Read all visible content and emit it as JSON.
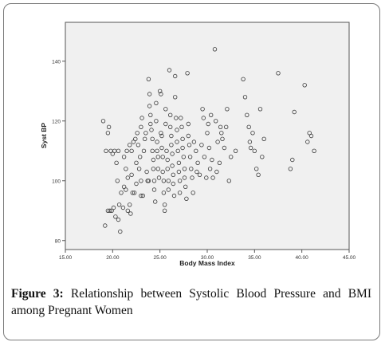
{
  "caption": {
    "label": "Figure 3:",
    "text": "Relationship between Systolic Blood Pressure and BMI among Pregnant Women"
  },
  "colors": {
    "plot_bg": "#f0f0f0",
    "marker": "#3a3a3a",
    "axis": "#555555",
    "frame": "#7a7a7a"
  },
  "chart_data": {
    "type": "scatter",
    "xlabel": "Body Mass Index",
    "ylabel": "Syst BP",
    "xlim": [
      15.0,
      45.0
    ],
    "ylim": [
      77,
      153
    ],
    "xticks": [
      15,
      20,
      25,
      30,
      35,
      40,
      45
    ],
    "xtick_labels": [
      "15.00",
      "20.00",
      "25.00",
      "30.00",
      "35.00",
      "40.00",
      "45.00"
    ],
    "yticks": [
      80,
      100,
      120,
      140
    ],
    "ytick_labels": [
      "80",
      "100",
      "120",
      "140"
    ],
    "grid": false,
    "legend": false,
    "points": [
      [
        19.0,
        120
      ],
      [
        19.3,
        110
      ],
      [
        19.5,
        116
      ],
      [
        19.6,
        118
      ],
      [
        19.8,
        110
      ],
      [
        20.0,
        109
      ],
      [
        20.2,
        110
      ],
      [
        20.4,
        106
      ],
      [
        20.6,
        110
      ],
      [
        19.2,
        85
      ],
      [
        19.5,
        90
      ],
      [
        19.7,
        90
      ],
      [
        19.9,
        90
      ],
      [
        20.1,
        91
      ],
      [
        20.3,
        88
      ],
      [
        20.6,
        87
      ],
      [
        20.8,
        83
      ],
      [
        20.7,
        92
      ],
      [
        21.1,
        91
      ],
      [
        20.5,
        100
      ],
      [
        20.9,
        96
      ],
      [
        21.2,
        98
      ],
      [
        21.4,
        97
      ],
      [
        21.6,
        90
      ],
      [
        21.8,
        92
      ],
      [
        21.9,
        89
      ],
      [
        21.4,
        104
      ],
      [
        21.5,
        110
      ],
      [
        21.8,
        112
      ],
      [
        21.2,
        108
      ],
      [
        21.6,
        101
      ],
      [
        22.0,
        102
      ],
      [
        22.1,
        96
      ],
      [
        22.3,
        96
      ],
      [
        22.5,
        99
      ],
      [
        22.0,
        110
      ],
      [
        22.2,
        113
      ],
      [
        22.4,
        114
      ],
      [
        22.6,
        116
      ],
      [
        22.7,
        112
      ],
      [
        22.5,
        106
      ],
      [
        22.8,
        104
      ],
      [
        22.9,
        108
      ],
      [
        23.0,
        100
      ],
      [
        23.0,
        95
      ],
      [
        23.2,
        95
      ],
      [
        23.0,
        118
      ],
      [
        23.1,
        121
      ],
      [
        23.3,
        110
      ],
      [
        23.4,
        114
      ],
      [
        23.5,
        116
      ],
      [
        23.6,
        103
      ],
      [
        23.7,
        100
      ],
      [
        23.8,
        100
      ],
      [
        23.8,
        134
      ],
      [
        23.9,
        129
      ],
      [
        23.9,
        125
      ],
      [
        24.0,
        122
      ],
      [
        24.0,
        119
      ],
      [
        24.1,
        117
      ],
      [
        24.2,
        114
      ],
      [
        24.2,
        110
      ],
      [
        24.3,
        107
      ],
      [
        24.3,
        104
      ],
      [
        24.4,
        100
      ],
      [
        24.4,
        97
      ],
      [
        24.5,
        93
      ],
      [
        24.6,
        120
      ],
      [
        24.6,
        126
      ],
      [
        24.7,
        110
      ],
      [
        24.7,
        113
      ],
      [
        24.8,
        108
      ],
      [
        24.8,
        104
      ],
      [
        24.9,
        101
      ],
      [
        25.0,
        130
      ],
      [
        25.1,
        129
      ],
      [
        25.1,
        116
      ],
      [
        25.2,
        115
      ],
      [
        25.2,
        111
      ],
      [
        25.3,
        108
      ],
      [
        25.3,
        103
      ],
      [
        25.4,
        100
      ],
      [
        25.4,
        96
      ],
      [
        25.5,
        92
      ],
      [
        25.5,
        90
      ],
      [
        25.6,
        119
      ],
      [
        25.6,
        124
      ],
      [
        25.7,
        110
      ],
      [
        25.8,
        107
      ],
      [
        25.8,
        104
      ],
      [
        25.9,
        100
      ],
      [
        25.9,
        97
      ],
      [
        26.0,
        137
      ],
      [
        26.1,
        122
      ],
      [
        26.1,
        118
      ],
      [
        26.2,
        115
      ],
      [
        26.2,
        112
      ],
      [
        26.3,
        109
      ],
      [
        26.3,
        105
      ],
      [
        26.4,
        102
      ],
      [
        26.4,
        99
      ],
      [
        26.5,
        95
      ],
      [
        26.6,
        135
      ],
      [
        26.6,
        128
      ],
      [
        26.7,
        121
      ],
      [
        26.8,
        117
      ],
      [
        26.8,
        113
      ],
      [
        26.9,
        110
      ],
      [
        27.0,
        106
      ],
      [
        27.0,
        103
      ],
      [
        27.1,
        100
      ],
      [
        27.1,
        96
      ],
      [
        27.2,
        121
      ],
      [
        27.3,
        118
      ],
      [
        27.4,
        114
      ],
      [
        27.4,
        111
      ],
      [
        27.5,
        108
      ],
      [
        27.6,
        104
      ],
      [
        27.6,
        101
      ],
      [
        27.7,
        98
      ],
      [
        27.8,
        94
      ],
      [
        27.9,
        136
      ],
      [
        28.0,
        119
      ],
      [
        28.0,
        115
      ],
      [
        28.1,
        112
      ],
      [
        28.2,
        108
      ],
      [
        28.3,
        104
      ],
      [
        28.4,
        101
      ],
      [
        28.5,
        96
      ],
      [
        28.6,
        113
      ],
      [
        28.8,
        110
      ],
      [
        28.9,
        103
      ],
      [
        29.0,
        106
      ],
      [
        29.2,
        102
      ],
      [
        29.4,
        112
      ],
      [
        29.5,
        124
      ],
      [
        29.6,
        121
      ],
      [
        29.7,
        108
      ],
      [
        29.9,
        101
      ],
      [
        30.0,
        116
      ],
      [
        30.1,
        119
      ],
      [
        30.2,
        111
      ],
      [
        30.3,
        104
      ],
      [
        30.4,
        122
      ],
      [
        30.5,
        107
      ],
      [
        30.6,
        101
      ],
      [
        30.8,
        144
      ],
      [
        30.9,
        120
      ],
      [
        31.0,
        103
      ],
      [
        31.1,
        113
      ],
      [
        31.3,
        106
      ],
      [
        31.4,
        118
      ],
      [
        31.5,
        116
      ],
      [
        31.6,
        114
      ],
      [
        31.8,
        111
      ],
      [
        32.0,
        118
      ],
      [
        32.1,
        124
      ],
      [
        32.3,
        100
      ],
      [
        32.5,
        108
      ],
      [
        33.0,
        110
      ],
      [
        33.8,
        134
      ],
      [
        34.0,
        128
      ],
      [
        34.2,
        122
      ],
      [
        34.4,
        118
      ],
      [
        34.5,
        113
      ],
      [
        34.6,
        111
      ],
      [
        34.8,
        116
      ],
      [
        35.0,
        110
      ],
      [
        35.2,
        104
      ],
      [
        35.4,
        102
      ],
      [
        35.6,
        124
      ],
      [
        35.8,
        108
      ],
      [
        36.0,
        114
      ],
      [
        37.5,
        136
      ],
      [
        38.8,
        104
      ],
      [
        39.0,
        107
      ],
      [
        39.2,
        123
      ],
      [
        40.3,
        132
      ],
      [
        40.6,
        113
      ],
      [
        40.8,
        116
      ],
      [
        41.0,
        115
      ],
      [
        41.3,
        110
      ]
    ]
  }
}
